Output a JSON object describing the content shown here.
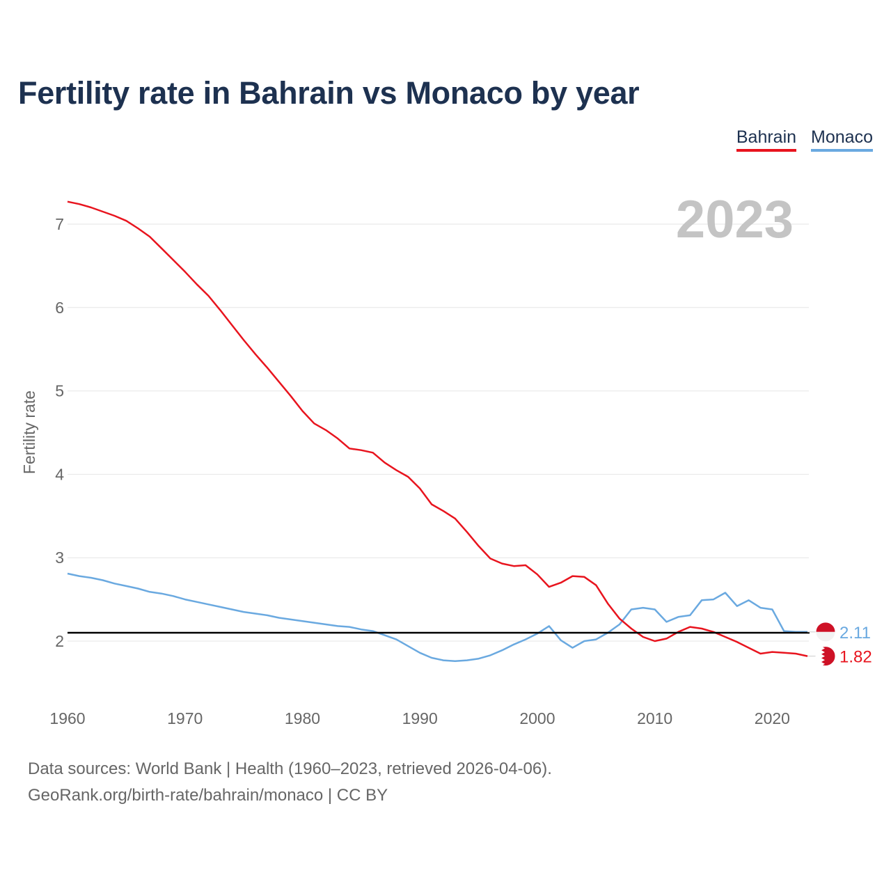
{
  "title": "Fertility rate in Bahrain vs Monaco by year",
  "legend": [
    {
      "name": "Bahrain",
      "color": "#e8141e"
    },
    {
      "name": "Monaco",
      "color": "#6aa9e0"
    }
  ],
  "footer": {
    "line1": "Data sources: World Bank | Health (1960–2023, retrieved 2026-04-06).",
    "line2": "GeoRank.org/birth-rate/bahrain/monaco | CC BY"
  },
  "chart_data": {
    "type": "line",
    "title": "Fertility rate in Bahrain vs Monaco by year",
    "xlabel": "",
    "ylabel": "Fertility rate",
    "year_label": "2023",
    "xlim": [
      1960,
      2023
    ],
    "ylim": [
      1.5,
      7.35
    ],
    "x_ticks": [
      1960,
      1970,
      1980,
      1990,
      2000,
      2010,
      2020
    ],
    "y_ticks": [
      2,
      3,
      4,
      5,
      6,
      7
    ],
    "grid": true,
    "legend_position": "top-right",
    "reference_line": {
      "value": 2.1
    },
    "x": [
      1960,
      1961,
      1962,
      1963,
      1964,
      1965,
      1966,
      1967,
      1968,
      1969,
      1970,
      1971,
      1972,
      1973,
      1974,
      1975,
      1976,
      1977,
      1978,
      1979,
      1980,
      1981,
      1982,
      1983,
      1984,
      1985,
      1986,
      1987,
      1988,
      1989,
      1990,
      1991,
      1992,
      1993,
      1994,
      1995,
      1996,
      1997,
      1998,
      1999,
      2000,
      2001,
      2002,
      2003,
      2004,
      2005,
      2006,
      2007,
      2008,
      2009,
      2010,
      2011,
      2012,
      2013,
      2014,
      2015,
      2016,
      2017,
      2018,
      2019,
      2020,
      2021,
      2022,
      2023
    ],
    "series": [
      {
        "name": "Bahrain",
        "color": "#e8141e",
        "end_label": "1.82",
        "values": [
          7.27,
          7.24,
          7.2,
          7.15,
          7.1,
          7.04,
          6.95,
          6.85,
          6.71,
          6.57,
          6.43,
          6.28,
          6.14,
          5.97,
          5.79,
          5.61,
          5.44,
          5.28,
          5.11,
          4.94,
          4.76,
          4.61,
          4.53,
          4.43,
          4.31,
          4.29,
          4.26,
          4.14,
          4.05,
          3.97,
          3.83,
          3.64,
          3.56,
          3.47,
          3.31,
          3.14,
          2.99,
          2.93,
          2.9,
          2.91,
          2.8,
          2.65,
          2.7,
          2.78,
          2.77,
          2.67,
          2.45,
          2.27,
          2.15,
          2.05,
          2.0,
          2.03,
          2.11,
          2.17,
          2.15,
          2.11,
          2.05,
          1.99,
          1.92,
          1.85,
          1.87,
          1.86,
          1.85,
          1.82
        ]
      },
      {
        "name": "Monaco",
        "color": "#6aa9e0",
        "end_label": "2.11",
        "values": [
          2.81,
          2.78,
          2.76,
          2.73,
          2.69,
          2.66,
          2.63,
          2.59,
          2.57,
          2.54,
          2.5,
          2.47,
          2.44,
          2.41,
          2.38,
          2.35,
          2.33,
          2.31,
          2.28,
          2.26,
          2.24,
          2.22,
          2.2,
          2.18,
          2.17,
          2.14,
          2.12,
          2.07,
          2.02,
          1.94,
          1.86,
          1.8,
          1.77,
          1.76,
          1.77,
          1.79,
          1.83,
          1.89,
          1.96,
          2.02,
          2.09,
          2.18,
          2.01,
          1.92,
          2.0,
          2.02,
          2.1,
          2.2,
          2.38,
          2.4,
          2.38,
          2.23,
          2.29,
          2.31,
          2.49,
          2.5,
          2.58,
          2.42,
          2.49,
          2.4,
          2.38,
          2.12,
          2.11,
          2.11
        ]
      }
    ]
  }
}
